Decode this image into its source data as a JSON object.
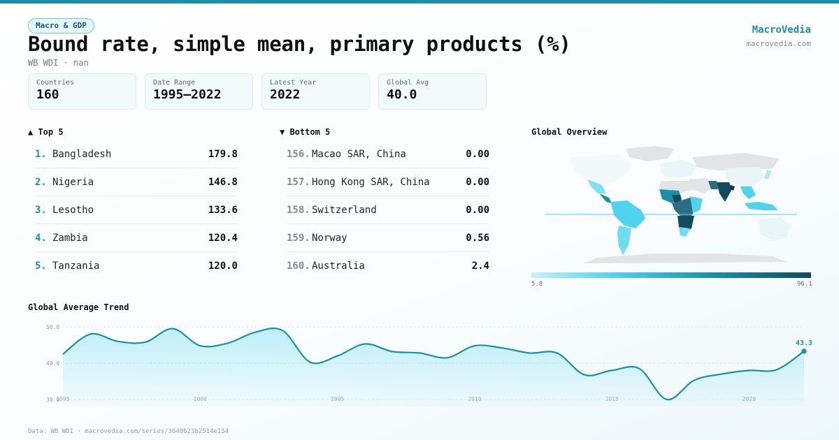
{
  "header": {
    "tag": "Macro & GDP",
    "title": "Bound rate, simple mean, primary products (%)",
    "subtitle": "WB WDI · nan",
    "brand": "MacroVedia",
    "brand_url": "macrovedia.com"
  },
  "stats": [
    {
      "label": "Countries",
      "value": "160"
    },
    {
      "label": "Date Range",
      "value": "1995–2022"
    },
    {
      "label": "Latest Year",
      "value": "2022"
    },
    {
      "label": "Global Avg",
      "value": "40.0"
    }
  ],
  "top": {
    "title": "▲ Top 5",
    "items": [
      {
        "rank": "1.",
        "name": "Bangladesh",
        "value": "179.8"
      },
      {
        "rank": "2.",
        "name": "Nigeria",
        "value": "146.8"
      },
      {
        "rank": "3.",
        "name": "Lesotho",
        "value": "133.6"
      },
      {
        "rank": "4.",
        "name": "Zambia",
        "value": "120.4"
      },
      {
        "rank": "5.",
        "name": "Tanzania",
        "value": "120.0"
      }
    ]
  },
  "bottom": {
    "title": "▼ Bottom 5",
    "items": [
      {
        "rank": "156.",
        "name": "Macao SAR, China",
        "value": "0.00"
      },
      {
        "rank": "157.",
        "name": "Hong Kong SAR, China",
        "value": "0.00"
      },
      {
        "rank": "158.",
        "name": "Switzerland",
        "value": "0.00"
      },
      {
        "rank": "159.",
        "name": "Norway",
        "value": "0.56"
      },
      {
        "rank": "160.",
        "name": "Australia",
        "value": "2.4"
      }
    ]
  },
  "map": {
    "title": "Global Overview",
    "legend_min": "5.8",
    "legend_max": "96.1",
    "colors": {
      "low": "#c7f0fa",
      "mid": "#4fd3ee",
      "high": "#1990a8",
      "max": "#124a5e",
      "nodata": "#e2e4e6"
    }
  },
  "trend": {
    "title": "Global Average Trend",
    "last_label": "43.3"
  },
  "footer": "Data: WB WDI · macrovedia.com/series/3640623b2514e154",
  "chart_data": {
    "type": "area",
    "title": "Global Average Trend",
    "x": [
      1995,
      1996,
      1997,
      1998,
      1999,
      2000,
      2001,
      2002,
      2003,
      2004,
      2005,
      2006,
      2007,
      2008,
      2009,
      2010,
      2011,
      2012,
      2013,
      2014,
      2015,
      2016,
      2017,
      2018,
      2019,
      2020,
      2021,
      2022
    ],
    "values": [
      42.5,
      48.0,
      46.0,
      45.8,
      49.5,
      44.8,
      45.5,
      48.5,
      49.0,
      40.3,
      42.0,
      45.3,
      43.2,
      42.8,
      41.5,
      44.8,
      44.2,
      42.8,
      42.8,
      36.8,
      38.0,
      38.5,
      30.0,
      35.3,
      37.0,
      38.0,
      38.2,
      43.3
    ],
    "y_ticks": [
      "30.0",
      "40.0",
      "50.0"
    ],
    "x_ticks": [
      "1995",
      "2000",
      "2005",
      "2010",
      "2015",
      "2020"
    ],
    "ylim": [
      27.5,
      52.5
    ],
    "grid": true,
    "color": "#1990a8"
  }
}
